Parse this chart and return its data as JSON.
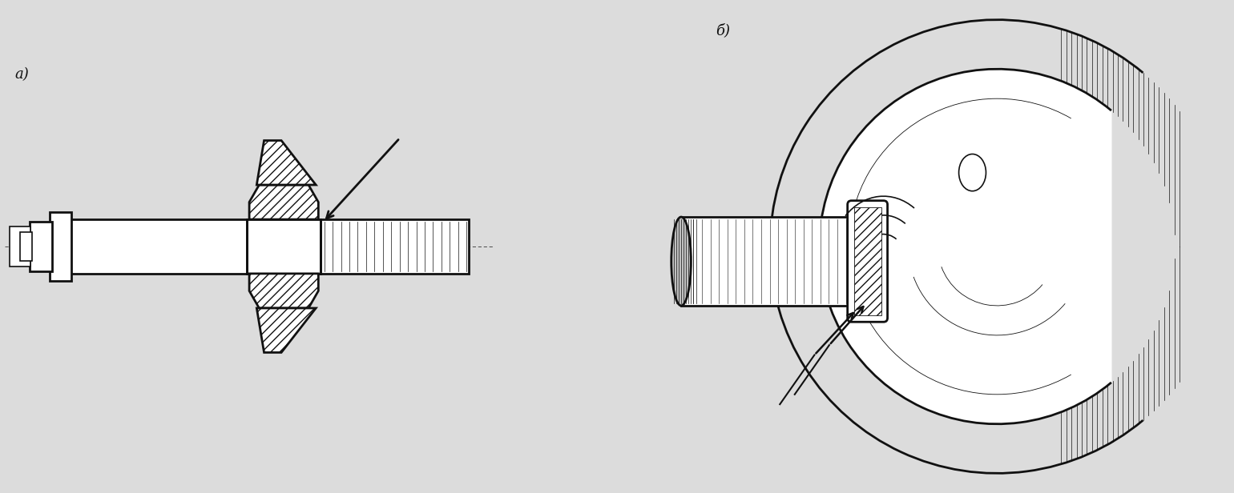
{
  "bg_color": "#dcdcdc",
  "label_a": "a)",
  "label_b": "б)",
  "lc": "#111111",
  "white": "#ffffff",
  "gray_hatch": "#e8e8e8",
  "fig_width": 15.4,
  "fig_height": 6.16,
  "lw_main": 2.0,
  "lw_med": 1.2,
  "lw_thin": 0.6
}
